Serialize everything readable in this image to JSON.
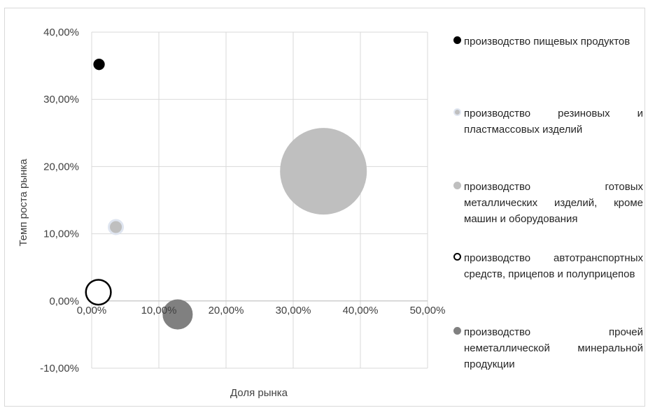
{
  "chart_data": {
    "type": "bubble",
    "title": "",
    "xlabel": "Доля рынка",
    "ylabel": "Темп роста рынка",
    "xlim": [
      0,
      0.5
    ],
    "ylim": [
      -0.1,
      0.4
    ],
    "x_ticks": [
      "0,00%",
      "10,00%",
      "20,00%",
      "30,00%",
      "40,00%",
      "50,00%"
    ],
    "y_ticks": [
      "40,00%",
      "30,00%",
      "20,00%",
      "10,00%",
      "0,00%",
      "-10,00%"
    ],
    "grid": true,
    "legend_position": "right",
    "series": [
      {
        "name": "производство пищевых продуктов",
        "x": 0.011,
        "y": 0.352,
        "size": 1.0,
        "fill": "#000000",
        "stroke": "#000000"
      },
      {
        "name": "производство резиновых и пластмассовых изделий",
        "x": 0.036,
        "y": 0.11,
        "size": 2.0,
        "fill": "#bfbfbf",
        "stroke": "#dfe5f0"
      },
      {
        "name": "производство готовых металлических изделий, кроме машин и оборудования",
        "x": 0.345,
        "y": 0.193,
        "size": 58.0,
        "fill": "#bfbfbf",
        "stroke": "#bfbfbf"
      },
      {
        "name": "производство автотранспортных средств, прицепов и полуприцепов",
        "x": 0.01,
        "y": 0.013,
        "size": 5.5,
        "fill": "#ffffff",
        "stroke": "#000000"
      },
      {
        "name": "производство прочей неметаллической минеральной продукции",
        "x": 0.128,
        "y": -0.02,
        "size": 7.0,
        "fill": "#808080",
        "stroke": "#808080"
      }
    ]
  },
  "legend": [
    {
      "text": "производство пищевых продуктов"
    },
    {
      "text": "производство резиновых и пластмассовых изделий"
    },
    {
      "text": "производство готовых металлических изделий, кроме машин и оборудования"
    },
    {
      "text": "производство автотранспортных средств, прицепов и полуприцепов"
    },
    {
      "text": "производство прочей неметаллической минеральной продукции"
    }
  ]
}
